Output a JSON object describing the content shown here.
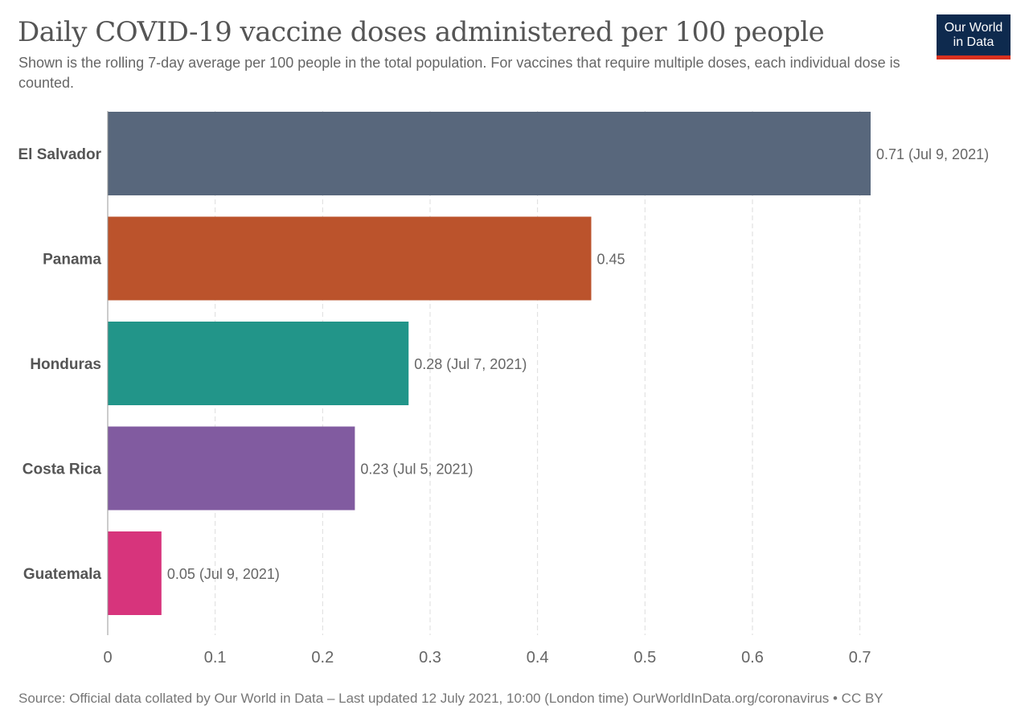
{
  "header": {
    "title": "Daily COVID-19 vaccine doses administered per 100 people",
    "subtitle": "Shown is the rolling 7-day average per 100 people in the total population. For vaccines that require multiple doses, each individual dose is counted.",
    "logo_line1": "Our World",
    "logo_line2": "in Data"
  },
  "footer": {
    "source": "Source: Official data collated by Our World in Data – Last updated 12 July 2021, 10:00 (London time) OurWorldInData.org/coronavirus • CC BY"
  },
  "colors": {
    "grid": "#dddddd",
    "axis": "#999999",
    "tick_text": "#666666",
    "category_text": "#555555",
    "value_text": "#666666",
    "logo_bg": "#0e2a4e",
    "logo_accent": "#d9301e"
  },
  "chart_data": {
    "type": "bar",
    "orientation": "horizontal",
    "categories": [
      "El Salvador",
      "Panama",
      "Honduras",
      "Costa Rica",
      "Guatemala"
    ],
    "values": [
      0.71,
      0.45,
      0.28,
      0.23,
      0.05
    ],
    "value_labels": [
      "0.71 (Jul 9, 2021)",
      "0.45",
      "0.28 (Jul 7, 2021)",
      "0.23 (Jul 5, 2021)",
      "0.05 (Jul 9, 2021)"
    ],
    "bar_colors": [
      "#58677c",
      "#bb532c",
      "#229589",
      "#815ba0",
      "#d7347c"
    ],
    "xticks": [
      0,
      0.1,
      0.2,
      0.3,
      0.4,
      0.5,
      0.6,
      0.7
    ],
    "xtick_labels": [
      "0",
      "0.1",
      "0.2",
      "0.3",
      "0.4",
      "0.5",
      "0.6",
      "0.7"
    ],
    "xlim": [
      0,
      0.71
    ],
    "grid": true,
    "grid_style": "dashed-vertical",
    "legend": "none"
  }
}
